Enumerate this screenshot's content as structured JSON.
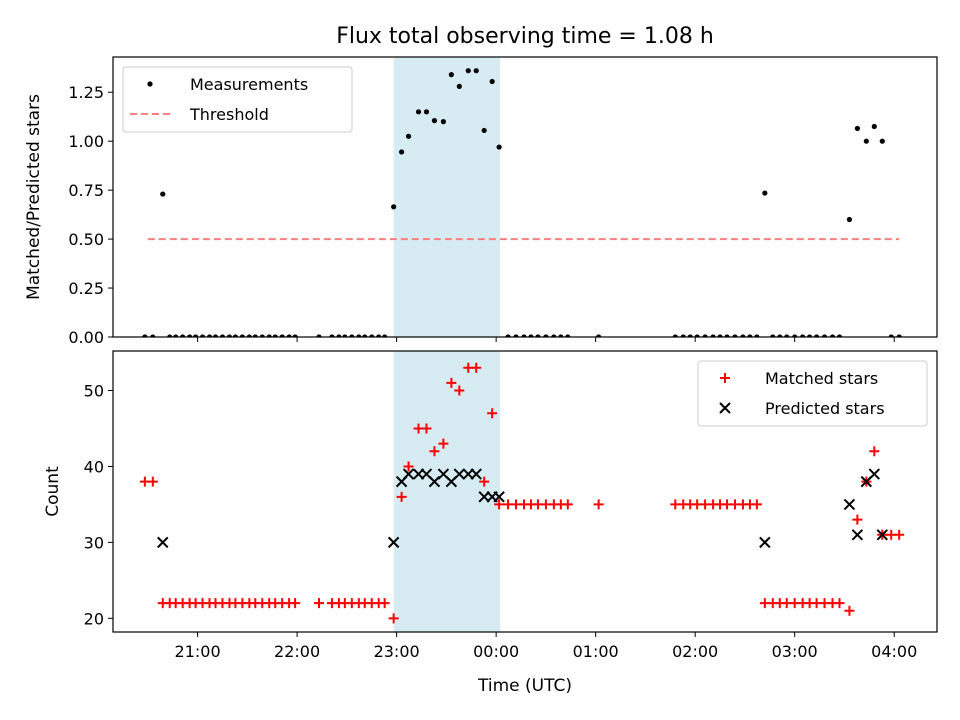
{
  "title": "Flux total observing time = 1.08 h",
  "x_axis": {
    "label": "Time (UTC)",
    "ticks": [
      "21:00",
      "22:00",
      "23:00",
      "00:00",
      "01:00",
      "02:00",
      "03:00",
      "04:00"
    ],
    "tick_hours": [
      21,
      22,
      23,
      24,
      25,
      26,
      27,
      28
    ],
    "range_hours": [
      20.15,
      28.43
    ]
  },
  "highlight_window_hours": [
    22.97,
    24.04
  ],
  "colors": {
    "measurements": "#000000",
    "threshold": "#ff7f7f",
    "matched": "#ff0000",
    "predicted": "#000000",
    "highlight": "#add8e6"
  },
  "chart_data": [
    {
      "type": "scatter",
      "ylabel": "Matched/Predicted stars",
      "ylim": [
        0,
        1.43
      ],
      "yticks": [
        "0.00",
        "0.25",
        "0.50",
        "0.75",
        "1.00",
        "1.25"
      ],
      "ytick_values": [
        0,
        0.25,
        0.5,
        0.75,
        1.0,
        1.25
      ],
      "legend_position": "top-left",
      "legend": [
        "Measurements",
        "Threshold"
      ],
      "threshold": {
        "name": "Threshold",
        "y": 0.5,
        "x": [
          20.5,
          28.05
        ]
      },
      "series": [
        {
          "name": "Measurements",
          "points": [
            [
              20.47,
              0
            ],
            [
              20.55,
              0
            ],
            [
              20.65,
              0.73
            ],
            [
              20.72,
              0
            ],
            [
              20.78,
              0
            ],
            [
              20.85,
              0
            ],
            [
              20.92,
              0
            ],
            [
              20.98,
              0
            ],
            [
              21.05,
              0
            ],
            [
              21.12,
              0
            ],
            [
              21.18,
              0
            ],
            [
              21.25,
              0
            ],
            [
              21.32,
              0
            ],
            [
              21.38,
              0
            ],
            [
              21.45,
              0
            ],
            [
              21.52,
              0
            ],
            [
              21.58,
              0
            ],
            [
              21.65,
              0
            ],
            [
              21.72,
              0
            ],
            [
              21.78,
              0
            ],
            [
              21.85,
              0
            ],
            [
              21.92,
              0
            ],
            [
              21.98,
              0
            ],
            [
              22.22,
              0
            ],
            [
              22.35,
              0
            ],
            [
              22.42,
              0
            ],
            [
              22.48,
              0
            ],
            [
              22.55,
              0
            ],
            [
              22.62,
              0
            ],
            [
              22.68,
              0
            ],
            [
              22.75,
              0
            ],
            [
              22.82,
              0
            ],
            [
              22.88,
              0
            ],
            [
              22.97,
              0.665
            ],
            [
              23.05,
              0.945
            ],
            [
              23.12,
              1.025
            ],
            [
              23.22,
              1.15
            ],
            [
              23.3,
              1.15
            ],
            [
              23.38,
              1.105
            ],
            [
              23.47,
              1.1
            ],
            [
              23.55,
              1.34
            ],
            [
              23.63,
              1.28
            ],
            [
              23.72,
              1.36
            ],
            [
              23.8,
              1.36
            ],
            [
              23.88,
              1.055
            ],
            [
              23.96,
              1.305
            ],
            [
              24.03,
              0.97
            ],
            [
              24.12,
              0
            ],
            [
              24.2,
              0
            ],
            [
              24.28,
              0
            ],
            [
              24.35,
              0
            ],
            [
              24.42,
              0
            ],
            [
              24.5,
              0
            ],
            [
              24.58,
              0
            ],
            [
              24.65,
              0
            ],
            [
              24.72,
              0
            ],
            [
              25.03,
              0
            ],
            [
              25.8,
              0
            ],
            [
              25.88,
              0
            ],
            [
              25.95,
              0
            ],
            [
              26.02,
              0
            ],
            [
              26.1,
              0
            ],
            [
              26.18,
              0
            ],
            [
              26.25,
              0
            ],
            [
              26.32,
              0
            ],
            [
              26.4,
              0
            ],
            [
              26.48,
              0
            ],
            [
              26.55,
              0
            ],
            [
              26.62,
              0
            ],
            [
              26.7,
              0.735
            ],
            [
              26.78,
              0
            ],
            [
              26.85,
              0
            ],
            [
              26.92,
              0
            ],
            [
              27.0,
              0
            ],
            [
              27.08,
              0
            ],
            [
              27.15,
              0
            ],
            [
              27.22,
              0
            ],
            [
              27.3,
              0
            ],
            [
              27.38,
              0
            ],
            [
              27.45,
              0
            ],
            [
              27.55,
              0.6
            ],
            [
              27.63,
              1.065
            ],
            [
              27.72,
              1.0
            ],
            [
              27.8,
              1.075
            ],
            [
              27.88,
              1.0
            ],
            [
              27.97,
              0
            ],
            [
              28.05,
              0
            ]
          ]
        }
      ]
    },
    {
      "type": "scatter",
      "ylabel": "Count",
      "ylim": [
        18.2,
        55.2
      ],
      "yticks": [
        "20",
        "30",
        "40",
        "50"
      ],
      "ytick_values": [
        20,
        30,
        40,
        50
      ],
      "legend_position": "top-right",
      "legend": [
        "Matched stars",
        "Predicted stars"
      ],
      "series": [
        {
          "name": "Matched stars",
          "marker": "plus",
          "points": [
            [
              20.47,
              38
            ],
            [
              20.55,
              38
            ],
            [
              20.65,
              22
            ],
            [
              20.72,
              22
            ],
            [
              20.78,
              22
            ],
            [
              20.85,
              22
            ],
            [
              20.92,
              22
            ],
            [
              20.98,
              22
            ],
            [
              21.05,
              22
            ],
            [
              21.12,
              22
            ],
            [
              21.18,
              22
            ],
            [
              21.25,
              22
            ],
            [
              21.32,
              22
            ],
            [
              21.38,
              22
            ],
            [
              21.45,
              22
            ],
            [
              21.52,
              22
            ],
            [
              21.58,
              22
            ],
            [
              21.65,
              22
            ],
            [
              21.72,
              22
            ],
            [
              21.78,
              22
            ],
            [
              21.85,
              22
            ],
            [
              21.92,
              22
            ],
            [
              21.98,
              22
            ],
            [
              22.22,
              22
            ],
            [
              22.35,
              22
            ],
            [
              22.42,
              22
            ],
            [
              22.48,
              22
            ],
            [
              22.55,
              22
            ],
            [
              22.62,
              22
            ],
            [
              22.68,
              22
            ],
            [
              22.75,
              22
            ],
            [
              22.82,
              22
            ],
            [
              22.88,
              22
            ],
            [
              22.97,
              20
            ],
            [
              23.05,
              36
            ],
            [
              23.12,
              40
            ],
            [
              23.22,
              45
            ],
            [
              23.3,
              45
            ],
            [
              23.38,
              42
            ],
            [
              23.47,
              43
            ],
            [
              23.55,
              51
            ],
            [
              23.63,
              50
            ],
            [
              23.72,
              53
            ],
            [
              23.8,
              53
            ],
            [
              23.88,
              38
            ],
            [
              23.96,
              47
            ],
            [
              24.03,
              35
            ],
            [
              24.12,
              35
            ],
            [
              24.2,
              35
            ],
            [
              24.28,
              35
            ],
            [
              24.35,
              35
            ],
            [
              24.42,
              35
            ],
            [
              24.5,
              35
            ],
            [
              24.58,
              35
            ],
            [
              24.65,
              35
            ],
            [
              24.72,
              35
            ],
            [
              25.03,
              35
            ],
            [
              25.8,
              35
            ],
            [
              25.88,
              35
            ],
            [
              25.95,
              35
            ],
            [
              26.02,
              35
            ],
            [
              26.1,
              35
            ],
            [
              26.18,
              35
            ],
            [
              26.25,
              35
            ],
            [
              26.32,
              35
            ],
            [
              26.4,
              35
            ],
            [
              26.48,
              35
            ],
            [
              26.55,
              35
            ],
            [
              26.62,
              35
            ],
            [
              26.7,
              22
            ],
            [
              26.78,
              22
            ],
            [
              26.85,
              22
            ],
            [
              26.92,
              22
            ],
            [
              27.0,
              22
            ],
            [
              27.08,
              22
            ],
            [
              27.15,
              22
            ],
            [
              27.22,
              22
            ],
            [
              27.3,
              22
            ],
            [
              27.38,
              22
            ],
            [
              27.45,
              22
            ],
            [
              27.55,
              21
            ],
            [
              27.63,
              33
            ],
            [
              27.72,
              38
            ],
            [
              27.8,
              42
            ],
            [
              27.88,
              31
            ],
            [
              27.97,
              31
            ],
            [
              28.05,
              31
            ]
          ]
        },
        {
          "name": "Predicted stars",
          "marker": "x",
          "points": [
            [
              20.65,
              30
            ],
            [
              22.97,
              30
            ],
            [
              23.05,
              38
            ],
            [
              23.12,
              39
            ],
            [
              23.22,
              39
            ],
            [
              23.3,
              39
            ],
            [
              23.38,
              38
            ],
            [
              23.47,
              39
            ],
            [
              23.55,
              38
            ],
            [
              23.63,
              39
            ],
            [
              23.72,
              39
            ],
            [
              23.8,
              39
            ],
            [
              23.88,
              36
            ],
            [
              23.96,
              36
            ],
            [
              24.03,
              36
            ],
            [
              26.7,
              30
            ],
            [
              27.55,
              35
            ],
            [
              27.63,
              31
            ],
            [
              27.72,
              38
            ],
            [
              27.8,
              39
            ],
            [
              27.88,
              31
            ]
          ]
        }
      ]
    }
  ]
}
